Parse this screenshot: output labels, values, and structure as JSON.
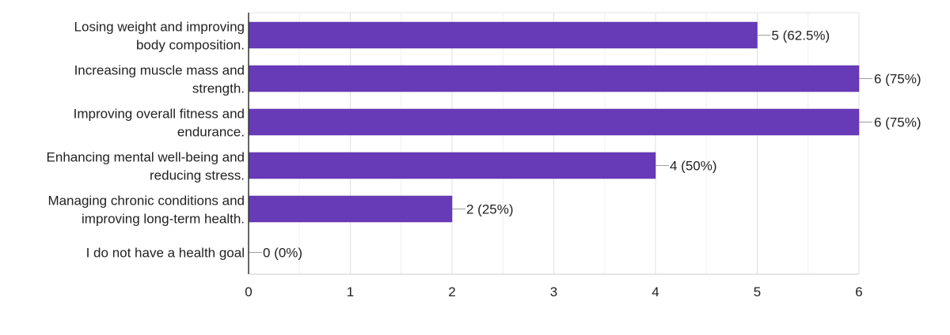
{
  "chart_data": {
    "type": "bar",
    "orientation": "horizontal",
    "categories": [
      [
        "Losing weight and improving",
        "body composition."
      ],
      [
        "Increasing muscle mass and",
        "strength."
      ],
      [
        "Improving overall fitness and",
        "endurance."
      ],
      [
        "Enhancing mental well-being and",
        "reducing stress."
      ],
      [
        "Managing chronic conditions and",
        "improving long-term health."
      ],
      [
        "I do not have a health goal"
      ]
    ],
    "values": [
      5,
      6,
      6,
      4,
      2,
      0
    ],
    "data_labels": [
      "5 (62.5%)",
      "6 (75%)",
      "6 (75%)",
      "4 (50%)",
      "2 (25%)",
      "0 (0%)"
    ],
    "xlim": [
      0,
      6
    ],
    "x_ticks": [
      0,
      1,
      2,
      3,
      4,
      5,
      6
    ],
    "grid": true,
    "bar_color": "#673AB7",
    "title": "",
    "xlabel": "",
    "ylabel": ""
  }
}
